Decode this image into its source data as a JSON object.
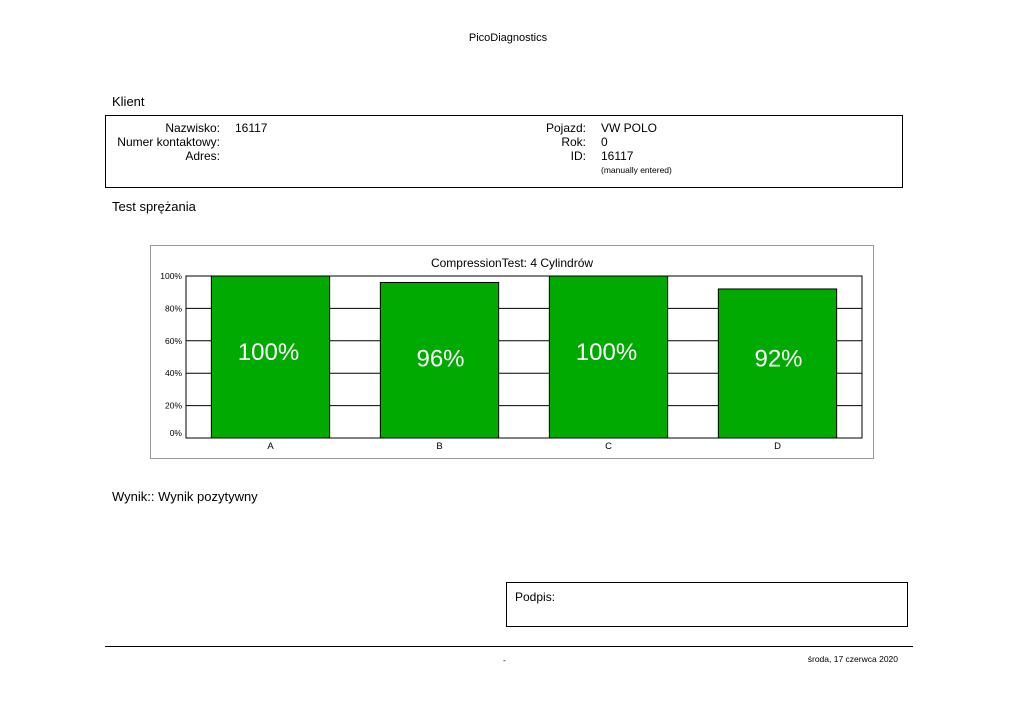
{
  "app_title": "PicoDiagnostics",
  "client": {
    "heading": "Klient",
    "surname_label": "Nazwisko:",
    "surname_value": "16117",
    "contact_label": "Numer kontaktowy:",
    "contact_value": "",
    "address_label": "Adres:",
    "address_value": "",
    "vehicle_label": "Pojazd:",
    "vehicle_value": "VW POLO",
    "year_label": "Rok:",
    "year_value": "0",
    "id_label": "ID:",
    "id_value": "16117",
    "id_note": "(manually entered)"
  },
  "test": {
    "heading": "Test sprężania"
  },
  "chart_data": {
    "type": "bar",
    "title": "CompressionTest: 4 Cylindrów",
    "categories": [
      "A",
      "B",
      "C",
      "D"
    ],
    "values": [
      100,
      96,
      100,
      92
    ],
    "value_labels": [
      "100%",
      "96%",
      "100%",
      "92%"
    ],
    "ytick_labels": [
      "0%",
      "20%",
      "40%",
      "60%",
      "80%",
      "100%"
    ],
    "ylim": [
      0,
      100
    ],
    "grid": true,
    "bar_color": "#00aa00"
  },
  "result": {
    "text": "Wynik:: Wynik pozytywny"
  },
  "signature": {
    "label": "Podpis:"
  },
  "footer": {
    "center": "-",
    "date": "środa, 17 czerwca 2020"
  }
}
